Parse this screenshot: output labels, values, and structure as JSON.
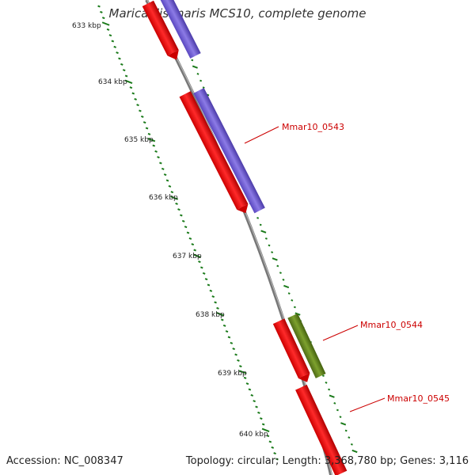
{
  "title": "Maricaulis maris MCS10, complete genome",
  "ticks": [
    "633 kbp",
    "634 kbp",
    "635 kbp",
    "636 kbp",
    "637 kbp",
    "638 kbp",
    "639 kbp",
    "640 kbp"
  ],
  "genes": [
    {
      "label": "Mmar10_0543"
    },
    {
      "label": "Mmar10_0544"
    },
    {
      "label": "Mmar10_0545"
    }
  ],
  "footer": {
    "accession": "Accession: NC_008347",
    "summary": "Topology: circular; Length: 3,368,780 bp; Genes: 3,116"
  },
  "colors": {
    "cds_forward": "#ff0000",
    "blast_blue": "#7b68d8",
    "blast_olive": "#6b8e23",
    "tick_green": "#1a7a1a",
    "backbone": "#888888",
    "gene_label": "#cc0000"
  }
}
